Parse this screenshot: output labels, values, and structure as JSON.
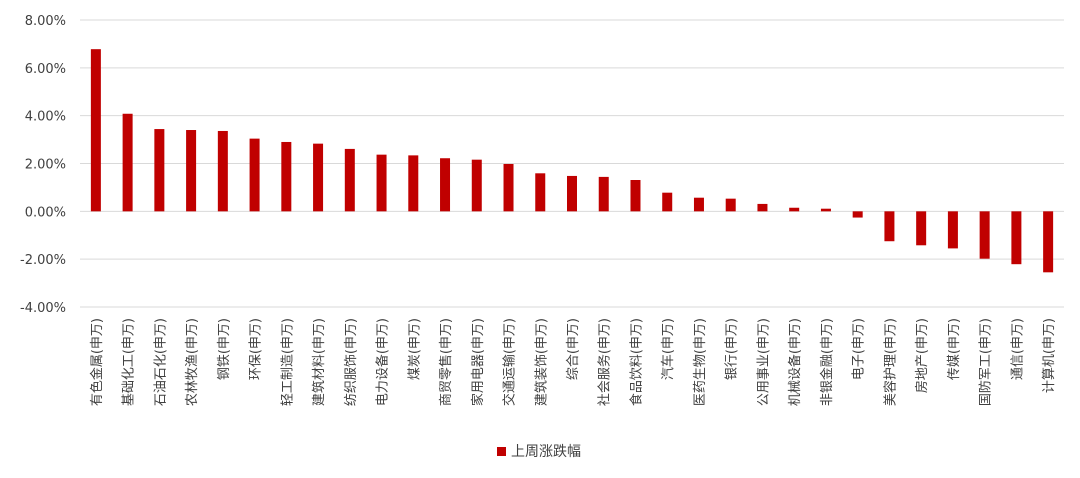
{
  "chart_data": {
    "type": "bar",
    "categories": [
      "有色金属(申万)",
      "基础化工(申万)",
      "石油石化(申万)",
      "农林牧渔(申万)",
      "钢铁(申万)",
      "环保(申万)",
      "轻工制造(申万)",
      "建筑材料(申万)",
      "纺织服饰(申万)",
      "电力设备(申万)",
      "煤炭(申万)",
      "商贸零售(申万)",
      "家用电器(申万)",
      "交通运输(申万)",
      "建筑装饰(申万)",
      "综合(申万)",
      "社会服务(申万)",
      "食品饮料(申万)",
      "汽车(申万)",
      "医药生物(申万)",
      "银行(申万)",
      "公用事业(申万)",
      "机械设备(申万)",
      "非银金融(申万)",
      "电子(申万)",
      "美容护理(申万)",
      "房地产(申万)",
      "传媒(申万)",
      "国防军工(申万)",
      "通信(申万)",
      "计算机(申万)"
    ],
    "series": [
      {
        "name": "上周涨跌幅",
        "color": "#C00000",
        "values": [
          6.78,
          4.08,
          3.44,
          3.4,
          3.36,
          3.04,
          2.9,
          2.83,
          2.61,
          2.37,
          2.34,
          2.22,
          2.16,
          1.98,
          1.59,
          1.48,
          1.44,
          1.31,
          0.78,
          0.57,
          0.53,
          0.31,
          0.15,
          0.11,
          -0.26,
          -1.25,
          -1.42,
          -1.55,
          -1.98,
          -2.21,
          -2.55
        ]
      }
    ],
    "y_tick_labels": [
      "8.00%",
      "6.00%",
      "4.00%",
      "2.00%",
      "0.00%",
      "-2.00%",
      "-4.00%"
    ],
    "ylim": [
      -4,
      8
    ],
    "grid": true,
    "legend_position": "bottom-center",
    "title": "",
    "xlabel": "",
    "ylabel": ""
  }
}
